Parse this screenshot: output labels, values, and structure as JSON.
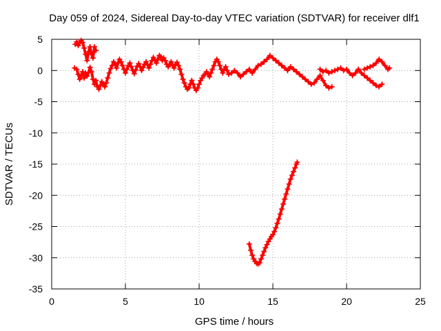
{
  "chart_data": {
    "type": "scatter",
    "title": "Day 059 of 2024, Sidereal Day-to-day VTEC variation (SDTVAR) for receiver dlf1",
    "xlabel": "GPS time / hours",
    "ylabel": "SDTVAR / TECUs",
    "xlim": [
      0,
      25
    ],
    "ylim": [
      -35,
      5
    ],
    "xticks": [
      0,
      5,
      10,
      15,
      20,
      25
    ],
    "yticks": [
      5,
      0,
      -5,
      -10,
      -15,
      -20,
      -25,
      -30,
      -35
    ],
    "grid": true,
    "legend": "none",
    "marker": "+",
    "color": "#ff0000",
    "series": [
      {
        "name": "",
        "points": [
          [
            1.6,
            4.2
          ],
          [
            1.7,
            4.6
          ],
          [
            1.8,
            4.0
          ],
          [
            1.9,
            4.4
          ],
          [
            2.0,
            4.8
          ],
          [
            2.1,
            4.5
          ],
          [
            2.2,
            3.6
          ],
          [
            2.3,
            2.6
          ],
          [
            2.4,
            1.6
          ],
          [
            2.5,
            3.0
          ],
          [
            2.6,
            3.8
          ],
          [
            2.7,
            2.6
          ],
          [
            2.8,
            2.0
          ],
          [
            2.9,
            3.8
          ],
          [
            3.0,
            3.2
          ],
          [
            1.55,
            0.4
          ],
          [
            1.7,
            0.2
          ],
          [
            1.8,
            -0.6
          ],
          [
            1.9,
            -1.4
          ],
          [
            2.0,
            -0.8
          ],
          [
            2.1,
            -0.2
          ],
          [
            2.2,
            -1.2
          ],
          [
            2.3,
            -0.4
          ],
          [
            2.4,
            -0.9
          ],
          [
            2.5,
            -0.3
          ],
          [
            2.6,
            0.5
          ],
          [
            2.7,
            -0.2
          ],
          [
            2.8,
            -1.4
          ],
          [
            2.9,
            -2.2
          ],
          [
            3.0,
            -1.6
          ],
          [
            3.1,
            -2.6
          ],
          [
            3.2,
            -3.0
          ],
          [
            3.3,
            -2.4
          ],
          [
            3.4,
            -1.8
          ],
          [
            3.5,
            -2.2
          ],
          [
            3.6,
            -2.6
          ],
          [
            3.7,
            -2.0
          ],
          [
            3.8,
            -1.2
          ],
          [
            3.9,
            -0.4
          ],
          [
            4.0,
            0.3
          ],
          [
            4.1,
            0.8
          ],
          [
            4.2,
            1.4
          ],
          [
            4.3,
            1.0
          ],
          [
            4.4,
            0.4
          ],
          [
            4.5,
            1.2
          ],
          [
            4.6,
            1.8
          ],
          [
            4.7,
            1.4
          ],
          [
            4.8,
            0.8
          ],
          [
            4.9,
            0.2
          ],
          [
            5.0,
            -0.4
          ],
          [
            5.1,
            0.2
          ],
          [
            5.2,
            0.8
          ],
          [
            5.3,
            1.2
          ],
          [
            5.4,
            0.6
          ],
          [
            5.5,
            0.0
          ],
          [
            5.6,
            -0.5
          ],
          [
            5.7,
            0.1
          ],
          [
            5.8,
            0.7
          ],
          [
            5.9,
            1.1
          ],
          [
            6.0,
            0.6
          ],
          [
            6.1,
            0.0
          ],
          [
            6.2,
            0.5
          ],
          [
            6.3,
            1.0
          ],
          [
            6.4,
            1.4
          ],
          [
            6.5,
            0.9
          ],
          [
            6.6,
            0.4
          ],
          [
            6.7,
            1.0
          ],
          [
            6.8,
            1.6
          ],
          [
            6.9,
            2.1
          ],
          [
            7.0,
            1.7
          ],
          [
            7.1,
            1.2
          ],
          [
            7.2,
            1.8
          ],
          [
            7.3,
            2.4
          ],
          [
            7.4,
            2.2
          ],
          [
            7.5,
            1.6
          ],
          [
            7.6,
            2.0
          ],
          [
            7.7,
            1.6
          ],
          [
            7.8,
            1.0
          ],
          [
            7.9,
            0.6
          ],
          [
            8.0,
            1.0
          ],
          [
            8.1,
            1.4
          ],
          [
            8.2,
            0.8
          ],
          [
            8.3,
            0.4
          ],
          [
            8.4,
            1.0
          ],
          [
            8.5,
            1.3
          ],
          [
            8.6,
            0.8
          ],
          [
            8.7,
            0.2
          ],
          [
            8.8,
            -0.6
          ],
          [
            8.9,
            -1.4
          ],
          [
            9.0,
            -2.0
          ],
          [
            9.1,
            -2.6
          ],
          [
            9.2,
            -3.0
          ],
          [
            9.3,
            -2.8
          ],
          [
            9.4,
            -2.2
          ],
          [
            9.5,
            -1.6
          ],
          [
            9.6,
            -2.2
          ],
          [
            9.7,
            -2.8
          ],
          [
            9.8,
            -3.2
          ],
          [
            9.9,
            -2.8
          ],
          [
            10.0,
            -2.2
          ],
          [
            10.1,
            -1.6
          ],
          [
            10.2,
            -1.2
          ],
          [
            10.3,
            -0.8
          ],
          [
            10.4,
            -0.6
          ],
          [
            10.5,
            -0.2
          ],
          [
            10.6,
            -0.6
          ],
          [
            10.7,
            -1.0
          ],
          [
            10.8,
            -0.4
          ],
          [
            10.9,
            0.2
          ],
          [
            11.0,
            0.8
          ],
          [
            11.1,
            1.4
          ],
          [
            11.2,
            1.8
          ],
          [
            11.3,
            1.4
          ],
          [
            11.4,
            0.8
          ],
          [
            11.5,
            0.2
          ],
          [
            11.6,
            -0.4
          ],
          [
            11.7,
            0.2
          ],
          [
            11.8,
            0.6
          ],
          [
            11.9,
            0.0
          ],
          [
            12.0,
            -0.6
          ],
          [
            12.2,
            -0.4
          ],
          [
            12.4,
            0.0
          ],
          [
            12.6,
            -0.4
          ],
          [
            12.8,
            -1.0
          ],
          [
            13.0,
            -0.6
          ],
          [
            13.2,
            -0.2
          ],
          [
            13.4,
            0.2
          ],
          [
            13.6,
            -0.4
          ],
          [
            13.8,
            0.2
          ],
          [
            14.0,
            0.8
          ],
          [
            14.2,
            1.0
          ],
          [
            14.4,
            1.4
          ],
          [
            14.6,
            1.8
          ],
          [
            14.8,
            2.4
          ],
          [
            15.0,
            2.0
          ],
          [
            15.2,
            1.6
          ],
          [
            15.4,
            1.2
          ],
          [
            15.6,
            0.8
          ],
          [
            15.8,
            0.4
          ],
          [
            16.0,
            0.0
          ],
          [
            16.2,
            0.6
          ],
          [
            16.4,
            0.2
          ],
          [
            16.6,
            -0.2
          ],
          [
            16.8,
            -0.6
          ],
          [
            17.0,
            -1.0
          ],
          [
            17.2,
            -1.4
          ],
          [
            17.4,
            -1.8
          ],
          [
            17.6,
            -2.2
          ],
          [
            17.8,
            -2.0
          ],
          [
            18.0,
            -1.4
          ],
          [
            18.2,
            -0.8
          ],
          [
            18.4,
            -1.6
          ],
          [
            18.6,
            -2.4
          ],
          [
            18.8,
            -2.8
          ],
          [
            19.0,
            -2.6
          ],
          [
            18.2,
            0.2
          ],
          [
            18.4,
            -0.2
          ],
          [
            18.6,
            0.0
          ],
          [
            18.8,
            -0.4
          ],
          [
            19.0,
            -0.2
          ],
          [
            19.2,
            0.0
          ],
          [
            19.4,
            0.2
          ],
          [
            19.6,
            0.4
          ],
          [
            19.8,
            0.0
          ],
          [
            20.0,
            0.2
          ],
          [
            20.2,
            -0.4
          ],
          [
            20.4,
            -0.8
          ],
          [
            20.6,
            -0.4
          ],
          [
            20.8,
            0.2
          ],
          [
            21.0,
            -0.4
          ],
          [
            21.2,
            -0.8
          ],
          [
            21.4,
            -1.2
          ],
          [
            21.6,
            -1.6
          ],
          [
            21.8,
            -2.0
          ],
          [
            22.0,
            -2.4
          ],
          [
            22.2,
            -2.6
          ],
          [
            22.4,
            -2.2
          ],
          [
            21.2,
            0.2
          ],
          [
            21.4,
            0.4
          ],
          [
            21.6,
            0.6
          ],
          [
            21.8,
            0.8
          ],
          [
            22.0,
            1.2
          ],
          [
            22.2,
            1.8
          ],
          [
            22.4,
            1.4
          ],
          [
            22.6,
            0.8
          ],
          [
            22.8,
            0.2
          ],
          [
            22.9,
            0.4
          ],
          [
            13.4,
            -27.8
          ],
          [
            13.5,
            -28.8
          ],
          [
            13.6,
            -29.6
          ],
          [
            13.7,
            -30.2
          ],
          [
            13.8,
            -30.6
          ],
          [
            13.9,
            -30.9
          ],
          [
            14.0,
            -31.0
          ],
          [
            14.1,
            -30.8
          ],
          [
            14.2,
            -30.2
          ],
          [
            14.3,
            -29.6
          ],
          [
            14.4,
            -29.0
          ],
          [
            14.5,
            -28.4
          ],
          [
            14.6,
            -27.9
          ],
          [
            14.7,
            -27.4
          ],
          [
            14.8,
            -27.0
          ],
          [
            14.9,
            -26.6
          ],
          [
            15.0,
            -26.3
          ],
          [
            15.1,
            -25.8
          ],
          [
            15.2,
            -25.2
          ],
          [
            15.3,
            -24.5
          ],
          [
            15.4,
            -23.8
          ],
          [
            15.5,
            -23.0
          ],
          [
            15.6,
            -22.2
          ],
          [
            15.7,
            -21.4
          ],
          [
            15.8,
            -20.6
          ],
          [
            15.9,
            -19.8
          ],
          [
            16.0,
            -19.0
          ],
          [
            16.1,
            -18.2
          ],
          [
            16.2,
            -17.4
          ],
          [
            16.3,
            -16.8
          ],
          [
            16.4,
            -16.2
          ],
          [
            16.5,
            -15.6
          ],
          [
            16.6,
            -15.0
          ],
          [
            16.65,
            -14.7
          ]
        ]
      }
    ]
  }
}
